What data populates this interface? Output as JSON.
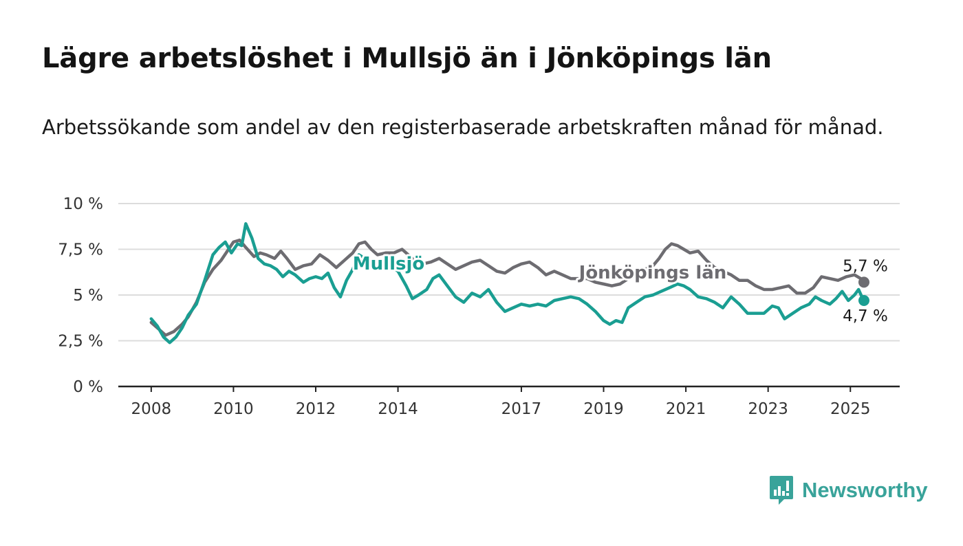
{
  "title": "Lägre arbetslöshet i Mullsjö än i Jönköpings län",
  "subtitle": "Arbetssökande som andel av den registerbaserade arbetskraften månad för månad.",
  "brand": "Newsworthy",
  "chart_data": {
    "type": "line",
    "title": "Lägre arbetslöshet i Mullsjö än i Jönköpings län",
    "subtitle": "Arbetssökande som andel av den registerbaserade arbetskraften månad för månad.",
    "x_ticks": [
      "2008",
      "2010",
      "2012",
      "2014",
      "2017",
      "2019",
      "2021",
      "2023",
      "2025"
    ],
    "y_ticks": [
      "0 %",
      "2,5 %",
      "5 %",
      "7,5 %",
      "10 %"
    ],
    "ylim": [
      0,
      10
    ],
    "xlim": [
      2007.2,
      2026.2
    ],
    "grid": true,
    "colors": {
      "mullsjo": "#1a9e92",
      "lan": "#6d6c71"
    },
    "series": [
      {
        "name": "Jönköpings län",
        "end_label": "5,7 %",
        "label_x": 2018.4,
        "label_y": 5.9,
        "points": [
          [
            2008.0,
            3.5
          ],
          [
            2008.2,
            3.1
          ],
          [
            2008.35,
            2.8
          ],
          [
            2008.55,
            3.0
          ],
          [
            2008.75,
            3.4
          ],
          [
            2008.9,
            3.8
          ],
          [
            2009.1,
            4.6
          ],
          [
            2009.3,
            5.7
          ],
          [
            2009.5,
            6.4
          ],
          [
            2009.7,
            6.9
          ],
          [
            2009.85,
            7.4
          ],
          [
            2010.0,
            7.9
          ],
          [
            2010.15,
            8.0
          ],
          [
            2010.3,
            7.6
          ],
          [
            2010.5,
            7.1
          ],
          [
            2010.65,
            7.3
          ],
          [
            2010.8,
            7.2
          ],
          [
            2011.0,
            7.0
          ],
          [
            2011.15,
            7.4
          ],
          [
            2011.3,
            7.0
          ],
          [
            2011.5,
            6.4
          ],
          [
            2011.7,
            6.6
          ],
          [
            2011.9,
            6.7
          ],
          [
            2012.1,
            7.2
          ],
          [
            2012.3,
            6.9
          ],
          [
            2012.5,
            6.5
          ],
          [
            2012.7,
            6.9
          ],
          [
            2012.9,
            7.3
          ],
          [
            2013.05,
            7.8
          ],
          [
            2013.2,
            7.9
          ],
          [
            2013.35,
            7.5
          ],
          [
            2013.5,
            7.2
          ],
          [
            2013.7,
            7.3
          ],
          [
            2013.9,
            7.3
          ],
          [
            2014.1,
            7.5
          ],
          [
            2014.2,
            7.3
          ],
          [
            2014.4,
            6.9
          ],
          [
            2014.6,
            6.7
          ],
          [
            2014.8,
            6.8
          ],
          [
            2015.0,
            7.0
          ],
          [
            2015.2,
            6.7
          ],
          [
            2015.4,
            6.4
          ],
          [
            2015.6,
            6.6
          ],
          [
            2015.8,
            6.8
          ],
          [
            2016.0,
            6.9
          ],
          [
            2016.2,
            6.6
          ],
          [
            2016.4,
            6.3
          ],
          [
            2016.6,
            6.2
          ],
          [
            2016.8,
            6.5
          ],
          [
            2017.0,
            6.7
          ],
          [
            2017.2,
            6.8
          ],
          [
            2017.4,
            6.5
          ],
          [
            2017.6,
            6.1
          ],
          [
            2017.8,
            6.3
          ],
          [
            2018.0,
            6.1
          ],
          [
            2018.2,
            5.9
          ],
          [
            2018.4,
            5.9
          ],
          [
            2018.6,
            5.9
          ],
          [
            2018.8,
            5.7
          ],
          [
            2019.0,
            5.6
          ],
          [
            2019.2,
            5.5
          ],
          [
            2019.4,
            5.6
          ],
          [
            2019.6,
            5.9
          ],
          [
            2019.8,
            6.2
          ],
          [
            2020.0,
            6.4
          ],
          [
            2020.2,
            6.6
          ],
          [
            2020.35,
            7.0
          ],
          [
            2020.5,
            7.5
          ],
          [
            2020.65,
            7.8
          ],
          [
            2020.8,
            7.7
          ],
          [
            2020.95,
            7.5
          ],
          [
            2021.1,
            7.3
          ],
          [
            2021.3,
            7.4
          ],
          [
            2021.5,
            6.9
          ],
          [
            2021.7,
            6.5
          ],
          [
            2021.9,
            6.3
          ],
          [
            2022.1,
            6.1
          ],
          [
            2022.3,
            5.8
          ],
          [
            2022.5,
            5.8
          ],
          [
            2022.7,
            5.5
          ],
          [
            2022.9,
            5.3
          ],
          [
            2023.1,
            5.3
          ],
          [
            2023.3,
            5.4
          ],
          [
            2023.5,
            5.5
          ],
          [
            2023.7,
            5.1
          ],
          [
            2023.9,
            5.1
          ],
          [
            2024.1,
            5.4
          ],
          [
            2024.3,
            6.0
          ],
          [
            2024.5,
            5.9
          ],
          [
            2024.7,
            5.8
          ],
          [
            2024.9,
            6.0
          ],
          [
            2025.1,
            6.1
          ],
          [
            2025.25,
            5.9
          ],
          [
            2025.33,
            5.7
          ]
        ]
      },
      {
        "name": "Mullsjö",
        "end_label": "4,7 %",
        "label_x": 2012.9,
        "label_y": 6.4,
        "points": [
          [
            2008.0,
            3.7
          ],
          [
            2008.15,
            3.3
          ],
          [
            2008.3,
            2.7
          ],
          [
            2008.45,
            2.4
          ],
          [
            2008.6,
            2.7
          ],
          [
            2008.75,
            3.2
          ],
          [
            2008.9,
            3.9
          ],
          [
            2009.1,
            4.5
          ],
          [
            2009.3,
            5.8
          ],
          [
            2009.5,
            7.2
          ],
          [
            2009.65,
            7.6
          ],
          [
            2009.8,
            7.9
          ],
          [
            2009.95,
            7.3
          ],
          [
            2010.1,
            7.8
          ],
          [
            2010.2,
            7.7
          ],
          [
            2010.3,
            8.9
          ],
          [
            2010.45,
            8.1
          ],
          [
            2010.6,
            7.0
          ],
          [
            2010.75,
            6.7
          ],
          [
            2010.9,
            6.6
          ],
          [
            2011.05,
            6.4
          ],
          [
            2011.2,
            6.0
          ],
          [
            2011.35,
            6.3
          ],
          [
            2011.5,
            6.1
          ],
          [
            2011.7,
            5.7
          ],
          [
            2011.85,
            5.9
          ],
          [
            2012.0,
            6.0
          ],
          [
            2012.15,
            5.9
          ],
          [
            2012.3,
            6.2
          ],
          [
            2012.45,
            5.4
          ],
          [
            2012.6,
            4.9
          ],
          [
            2012.75,
            5.8
          ],
          [
            2012.9,
            6.4
          ],
          [
            2013.05,
            7.2
          ],
          [
            2013.2,
            7.0
          ],
          [
            2013.4,
            6.6
          ],
          [
            2013.6,
            6.4
          ],
          [
            2013.8,
            6.6
          ],
          [
            2014.0,
            6.3
          ],
          [
            2014.2,
            5.5
          ],
          [
            2014.35,
            4.8
          ],
          [
            2014.5,
            5.0
          ],
          [
            2014.7,
            5.3
          ],
          [
            2014.85,
            5.9
          ],
          [
            2015.0,
            6.1
          ],
          [
            2015.2,
            5.5
          ],
          [
            2015.4,
            4.9
          ],
          [
            2015.6,
            4.6
          ],
          [
            2015.8,
            5.1
          ],
          [
            2016.0,
            4.9
          ],
          [
            2016.2,
            5.3
          ],
          [
            2016.4,
            4.6
          ],
          [
            2016.6,
            4.1
          ],
          [
            2016.8,
            4.3
          ],
          [
            2017.0,
            4.5
          ],
          [
            2017.2,
            4.4
          ],
          [
            2017.4,
            4.5
          ],
          [
            2017.6,
            4.4
          ],
          [
            2017.8,
            4.7
          ],
          [
            2018.0,
            4.8
          ],
          [
            2018.2,
            4.9
          ],
          [
            2018.4,
            4.8
          ],
          [
            2018.6,
            4.5
          ],
          [
            2018.8,
            4.1
          ],
          [
            2019.0,
            3.6
          ],
          [
            2019.15,
            3.4
          ],
          [
            2019.3,
            3.6
          ],
          [
            2019.45,
            3.5
          ],
          [
            2019.6,
            4.3
          ],
          [
            2019.8,
            4.6
          ],
          [
            2020.0,
            4.9
          ],
          [
            2020.2,
            5.0
          ],
          [
            2020.4,
            5.2
          ],
          [
            2020.6,
            5.4
          ],
          [
            2020.8,
            5.6
          ],
          [
            2020.95,
            5.5
          ],
          [
            2021.1,
            5.3
          ],
          [
            2021.3,
            4.9
          ],
          [
            2021.5,
            4.8
          ],
          [
            2021.7,
            4.6
          ],
          [
            2021.9,
            4.3
          ],
          [
            2022.1,
            4.9
          ],
          [
            2022.3,
            4.5
          ],
          [
            2022.5,
            4.0
          ],
          [
            2022.7,
            4.0
          ],
          [
            2022.9,
            4.0
          ],
          [
            2023.1,
            4.4
          ],
          [
            2023.25,
            4.3
          ],
          [
            2023.4,
            3.7
          ],
          [
            2023.6,
            4.0
          ],
          [
            2023.8,
            4.3
          ],
          [
            2024.0,
            4.5
          ],
          [
            2024.15,
            4.9
          ],
          [
            2024.3,
            4.7
          ],
          [
            2024.5,
            4.5
          ],
          [
            2024.65,
            4.8
          ],
          [
            2024.8,
            5.2
          ],
          [
            2024.95,
            4.7
          ],
          [
            2025.1,
            5.0
          ],
          [
            2025.2,
            5.3
          ],
          [
            2025.28,
            4.9
          ],
          [
            2025.33,
            4.7
          ]
        ]
      }
    ]
  }
}
